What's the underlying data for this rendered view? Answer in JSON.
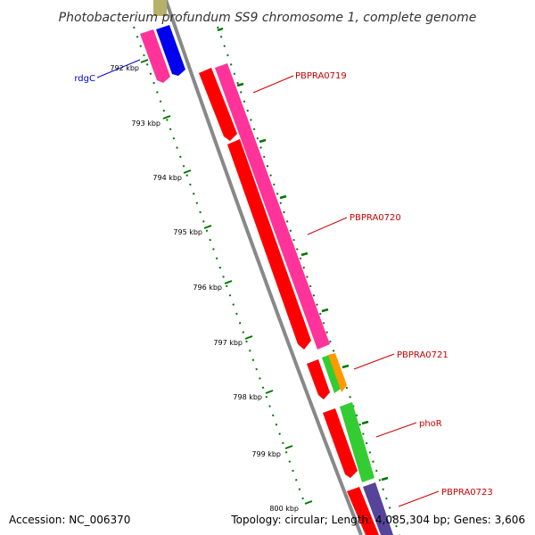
{
  "title": "Photobacterium profundum SS9 chromosome 1, complete genome",
  "footer": {
    "accession": "Accession: NC_006370",
    "summary": "Topology: circular; Length: 4,085,304 bp; Genes: 3,606"
  },
  "ticks": [
    {
      "label": "792 kbp"
    },
    {
      "label": "793 kbp"
    },
    {
      "label": "794 kbp"
    },
    {
      "label": "795 kbp"
    },
    {
      "label": "796 kbp"
    },
    {
      "label": "797 kbp"
    },
    {
      "label": "798 kbp"
    },
    {
      "label": "799 kbp"
    },
    {
      "label": "800 kbp"
    }
  ],
  "gene_labels": [
    {
      "label": "rdgC",
      "color": "#0000cc"
    },
    {
      "label": "PBPRA0719",
      "color": "#cc0000"
    },
    {
      "label": "PBPRA0720",
      "color": "#cc0000"
    },
    {
      "label": "PBPRA0721",
      "color": "#cc0000"
    },
    {
      "label": "phoR",
      "color": "#cc0000"
    },
    {
      "label": "PBPRA0723",
      "color": "#cc0000"
    }
  ],
  "colors": {
    "red_feature": "#ff0000",
    "pink_feature": "#ff3399",
    "blue_feature": "#0000ee",
    "green_feature": "#33cc33",
    "orange_feature": "#ff9900",
    "slate_feature": "#554499",
    "olive_feature": "#b5b06a",
    "backbone": "#888888",
    "tick_marks": "#007700"
  }
}
